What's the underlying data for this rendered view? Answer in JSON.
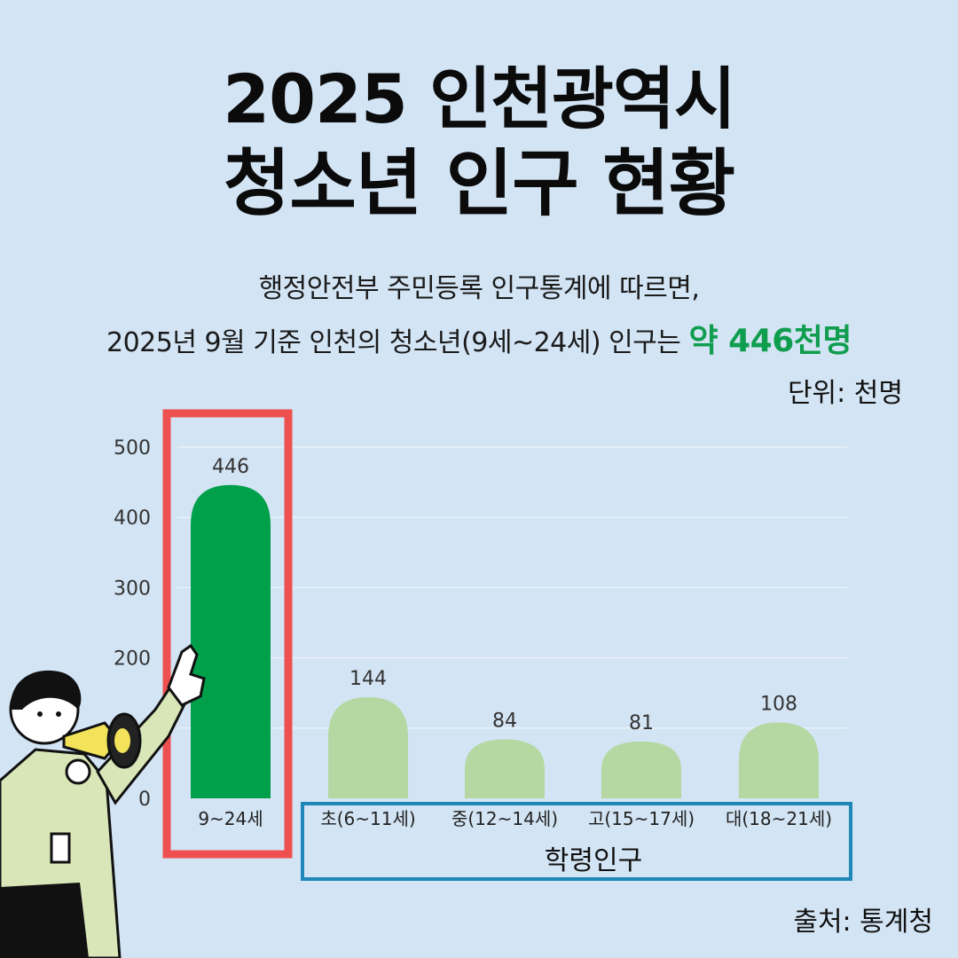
{
  "header": {
    "title_line1": "2025 인천광역시",
    "title_line2": "청소년 인구 현황",
    "subtitle_line1": "행정안전부 주민등록 인구통계에 따르면,",
    "subtitle_line2_prefix": "2025년 9월 기준 인천의 청소년(9세~24세) 인구는 ",
    "subtitle_highlight": "약 446천명",
    "unit_label": "단위: 천명"
  },
  "footer": {
    "source": "출처: 통계청"
  },
  "colors": {
    "background": "#d3e4f4",
    "total_bar": "#00a04a",
    "school_bar": "#b5d8a2",
    "total_box": "#ee5050",
    "school_box": "#1f88b8",
    "highlight_text": "#0f9d4e"
  },
  "chart_data": {
    "type": "bar",
    "categories": [
      "9~24세",
      "초(6~11세)",
      "중(12~14세)",
      "고(15~17세)",
      "대(18~21세)"
    ],
    "values": [
      446,
      144,
      84,
      81,
      108
    ],
    "ylim": [
      0,
      500
    ],
    "yticks": [
      0,
      100,
      200,
      300,
      400,
      500
    ],
    "ytick_labels": [
      "0",
      "",
      "200",
      "300",
      "400",
      "500"
    ],
    "grid": true,
    "group_label": "학령인구"
  }
}
